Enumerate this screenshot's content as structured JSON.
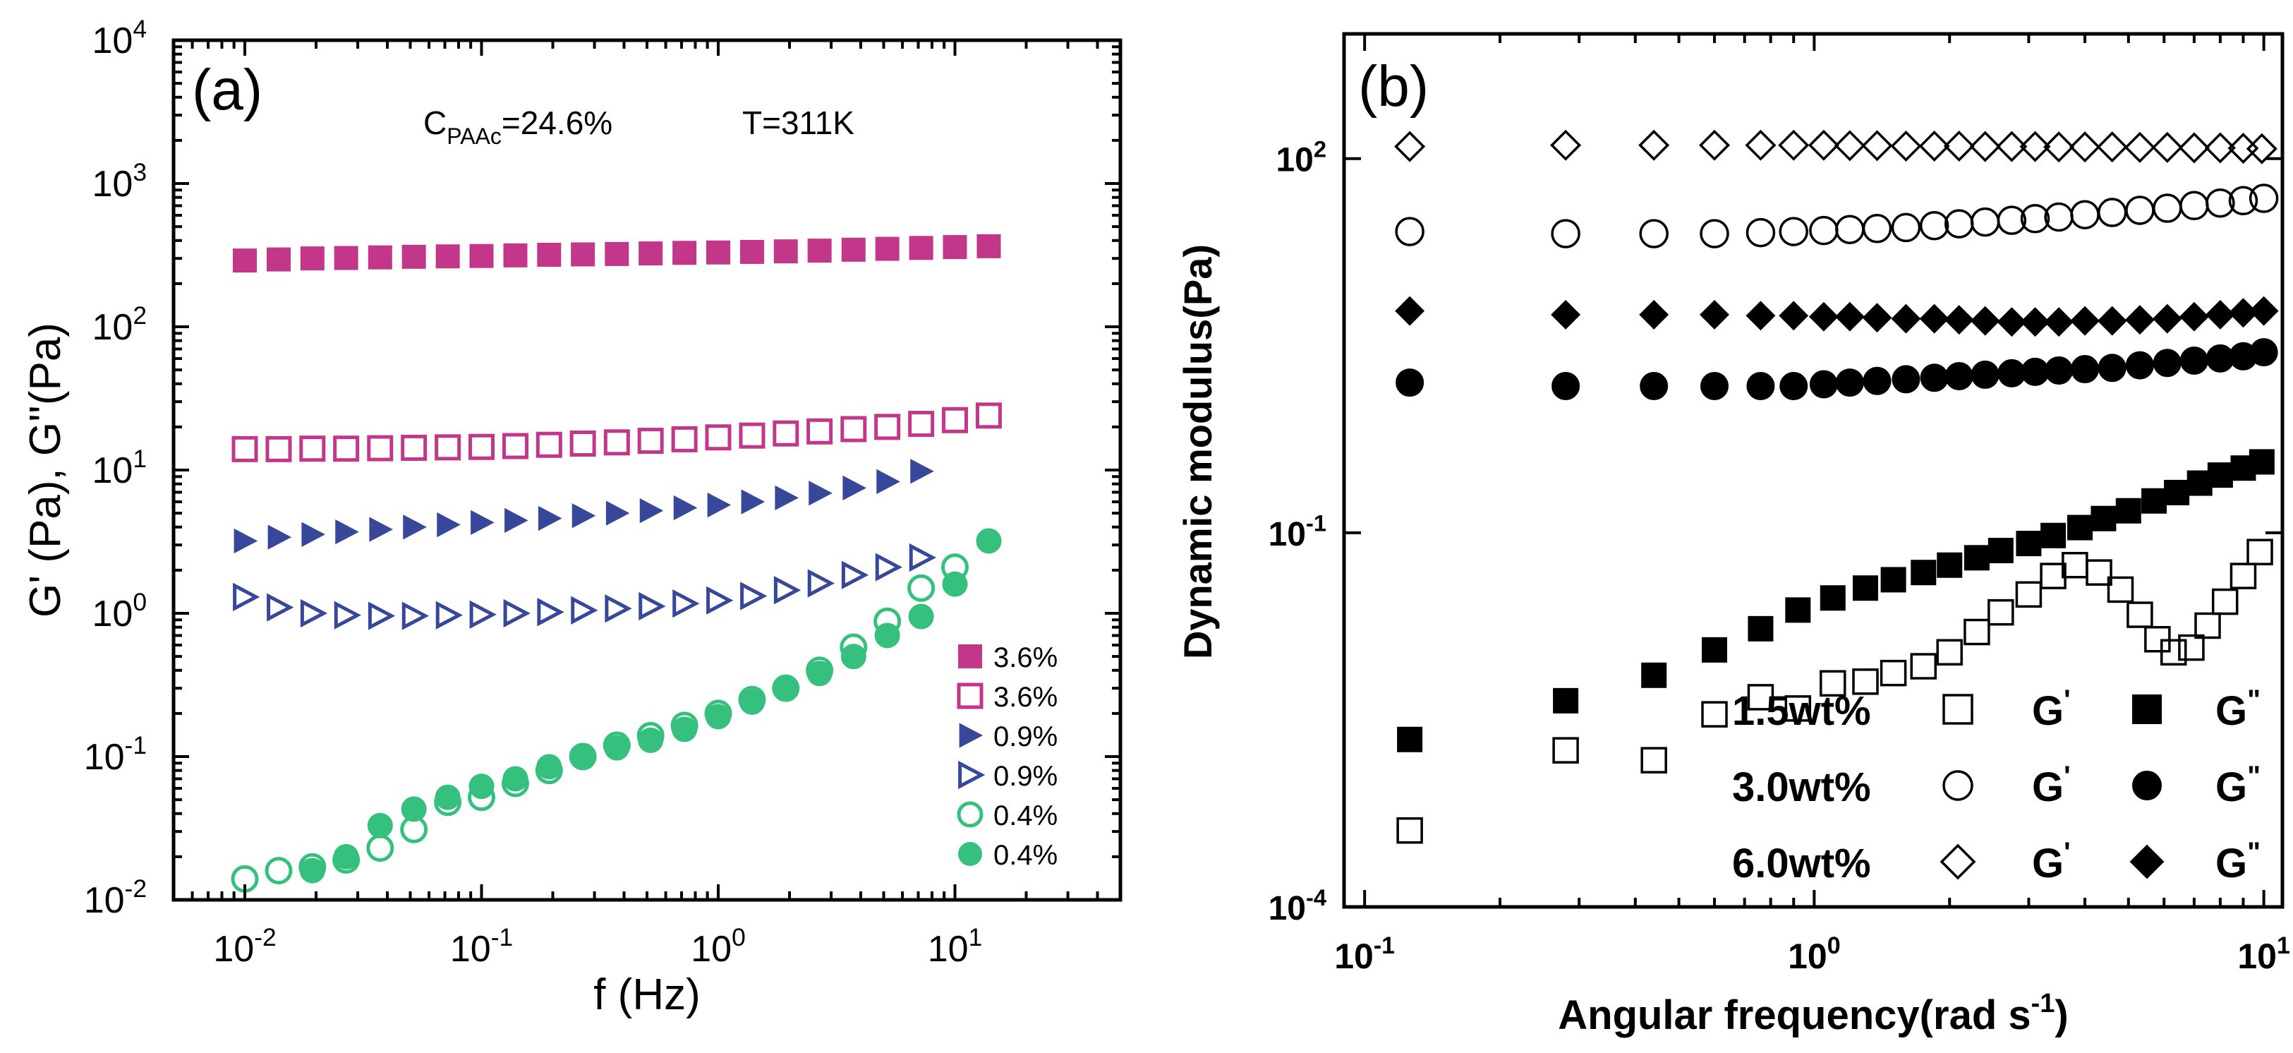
{
  "chart_data": [
    {
      "panel": "(a)",
      "type": "scatter",
      "xscale": "log",
      "yscale": "log",
      "xlim": [
        0.005,
        50
      ],
      "ylim": [
        0.01,
        10000
      ],
      "xlabel": "f (Hz)",
      "ylabel": "G' (Pa), G''(Pa)",
      "annotation": {
        "c_main": "C",
        "c_sub": "PAAc",
        "c_rest": "=24.6%",
        "temp": "T=311K"
      },
      "x_ticks": [
        {
          "value": 0.01,
          "base": "10",
          "exp": "-2"
        },
        {
          "value": 0.1,
          "base": "10",
          "exp": "-1"
        },
        {
          "value": 1,
          "base": "10",
          "exp": "0"
        },
        {
          "value": 10,
          "base": "10",
          "exp": "1"
        }
      ],
      "y_ticks": [
        {
          "value": 0.01,
          "base": "10",
          "exp": "-2"
        },
        {
          "value": 0.1,
          "base": "10",
          "exp": "-1"
        },
        {
          "value": 1,
          "base": "10",
          "exp": "0"
        },
        {
          "value": 10,
          "base": "10",
          "exp": "1"
        },
        {
          "value": 100,
          "base": "10",
          "exp": "2"
        },
        {
          "value": 1000,
          "base": "10",
          "exp": "3"
        },
        {
          "value": 10000,
          "base": "10",
          "exp": "4"
        }
      ],
      "legend_position": "bottom-right",
      "series": [
        {
          "name": "3.6%",
          "marker": "square",
          "filled": true,
          "color": "#c2378a",
          "x": [
            0.01,
            0.0139,
            0.0193,
            0.0268,
            0.0373,
            0.0518,
            0.072,
            0.1,
            0.139,
            0.193,
            0.268,
            0.373,
            0.518,
            0.72,
            1.0,
            1.39,
            1.93,
            2.68,
            3.73,
            5.18,
            7.2,
            10.0,
            13.9
          ],
          "y": [
            290,
            295,
            300,
            302,
            305,
            308,
            310,
            312,
            315,
            318,
            320,
            322,
            325,
            328,
            330,
            333,
            336,
            340,
            345,
            350,
            355,
            360,
            365
          ]
        },
        {
          "name": "3.6%",
          "marker": "square",
          "filled": false,
          "color": "#c2378a",
          "x": [
            0.01,
            0.0139,
            0.0193,
            0.0268,
            0.0373,
            0.0518,
            0.072,
            0.1,
            0.139,
            0.193,
            0.268,
            0.373,
            0.518,
            0.72,
            1.0,
            1.39,
            1.93,
            2.68,
            3.73,
            5.18,
            7.2,
            10.0,
            13.9
          ],
          "y": [
            14,
            14,
            14.1,
            14.1,
            14.2,
            14.3,
            14.4,
            14.5,
            14.7,
            15,
            15.3,
            15.6,
            16,
            16.4,
            16.9,
            17.4,
            18,
            18.6,
            19.3,
            20,
            21,
            22.3,
            24
          ]
        },
        {
          "name": "0.9%",
          "marker": "triangle-right",
          "filled": true,
          "color": "#37489b",
          "x": [
            0.01,
            0.0139,
            0.0193,
            0.0268,
            0.0373,
            0.0518,
            0.072,
            0.1,
            0.139,
            0.193,
            0.268,
            0.373,
            0.518,
            0.72,
            1.0,
            1.39,
            1.93,
            2.68,
            3.73,
            5.18,
            7.2
          ],
          "y": [
            3.2,
            3.4,
            3.55,
            3.7,
            3.85,
            4.0,
            4.15,
            4.3,
            4.45,
            4.6,
            4.8,
            5.0,
            5.2,
            5.45,
            5.7,
            6.0,
            6.4,
            6.9,
            7.5,
            8.3,
            9.8
          ]
        },
        {
          "name": "0.9%",
          "marker": "triangle-right",
          "filled": false,
          "color": "#37489b",
          "x": [
            0.01,
            0.0139,
            0.0193,
            0.0268,
            0.0373,
            0.0518,
            0.072,
            0.1,
            0.139,
            0.193,
            0.268,
            0.373,
            0.518,
            0.72,
            1.0,
            1.39,
            1.93,
            2.68,
            3.73,
            5.18,
            7.2
          ],
          "y": [
            1.3,
            1.1,
            1.0,
            0.97,
            0.96,
            0.96,
            0.97,
            0.98,
            1.0,
            1.02,
            1.05,
            1.08,
            1.12,
            1.17,
            1.23,
            1.32,
            1.45,
            1.62,
            1.85,
            2.1,
            2.45
          ]
        },
        {
          "name": "0.4%",
          "marker": "circle",
          "filled": false,
          "color": "#36c07e",
          "x": [
            0.01,
            0.0139,
            0.0193,
            0.0268,
            0.0373,
            0.0518,
            0.072,
            0.1,
            0.139,
            0.193,
            0.268,
            0.373,
            0.518,
            0.72,
            1.0,
            1.39,
            1.93,
            2.68,
            3.73,
            5.18,
            7.2,
            10.0
          ],
          "y": [
            0.014,
            0.016,
            0.017,
            0.019,
            0.023,
            0.031,
            0.048,
            0.052,
            0.065,
            0.08,
            0.1,
            0.12,
            0.14,
            0.165,
            0.2,
            0.25,
            0.3,
            0.4,
            0.58,
            0.88,
            1.5,
            2.1
          ]
        },
        {
          "name": "0.4%",
          "marker": "circle",
          "filled": true,
          "color": "#36c07e",
          "x": [
            0.0193,
            0.0268,
            0.0373,
            0.0518,
            0.072,
            0.1,
            0.139,
            0.193,
            0.268,
            0.373,
            0.518,
            0.72,
            1.0,
            1.39,
            1.93,
            2.68,
            3.73,
            5.18,
            7.2,
            10.0,
            13.9
          ],
          "y": [
            0.016,
            0.02,
            0.033,
            0.043,
            0.052,
            0.062,
            0.07,
            0.085,
            0.1,
            0.115,
            0.13,
            0.155,
            0.19,
            0.24,
            0.3,
            0.38,
            0.5,
            0.7,
            0.95,
            1.6,
            3.2
          ]
        }
      ]
    },
    {
      "panel": "(b)",
      "type": "scatter",
      "xscale": "log",
      "yscale": "log",
      "xlim": [
        0.09,
        11
      ],
      "ylim": [
        0.0001,
        1000
      ],
      "xlabel_main": "Angular frequency(rad s",
      "xlabel_sup": "-1",
      "xlabel_end": ")",
      "ylabel": "Dynamic modulus(Pa)",
      "x_ticks": [
        {
          "value": 0.1,
          "base": "10",
          "exp": "-1"
        },
        {
          "value": 1,
          "base": "10",
          "exp": "0"
        },
        {
          "value": 10,
          "base": "10",
          "exp": "1"
        }
      ],
      "y_ticks": [
        {
          "value": 0.0001,
          "base": "10",
          "exp": "-4"
        },
        {
          "value": 0.1,
          "base": "10",
          "exp": "-1"
        },
        {
          "value": 100,
          "base": "10",
          "exp": "2"
        }
      ],
      "legend_position": "bottom-right",
      "legend": [
        {
          "label": "1.5wt%",
          "marker": "square",
          "g1": "G",
          "g1_mark": "'",
          "g2": "G",
          "g2_mark": "\""
        },
        {
          "label": "3.0wt%",
          "marker": "circle",
          "g1": "G",
          "g1_mark": "'",
          "g2": "G",
          "g2_mark": "\""
        },
        {
          "label": "6.0wt%",
          "marker": "diamond",
          "g1": "G",
          "g1_mark": "'",
          "g2": "G",
          "g2_mark": "\""
        }
      ],
      "series": [
        {
          "name": "6.0wt% G'",
          "marker": "diamond",
          "filled": false,
          "x": [
            0.126,
            0.28,
            0.44,
            0.6,
            0.76,
            0.9,
            1.05,
            1.2,
            1.38,
            1.6,
            1.85,
            2.1,
            2.4,
            2.75,
            3.1,
            3.5,
            4.0,
            4.6,
            5.3,
            6.1,
            7.0,
            8.0,
            9.0,
            9.9
          ],
          "y": [
            125,
            128,
            128,
            128,
            128,
            128,
            128,
            127,
            127,
            126,
            126,
            126,
            125,
            125,
            125,
            124,
            124,
            124,
            123,
            123,
            122,
            122,
            121,
            120
          ]
        },
        {
          "name": "3.0wt% G'",
          "marker": "circle",
          "filled": false,
          "x": [
            0.126,
            0.28,
            0.44,
            0.6,
            0.76,
            0.9,
            1.05,
            1.2,
            1.38,
            1.6,
            1.85,
            2.1,
            2.4,
            2.75,
            3.1,
            3.5,
            4.0,
            4.6,
            5.3,
            6.1,
            7.0,
            8.0,
            9.0,
            10.0
          ],
          "y": [
            26,
            25,
            25,
            25,
            25.5,
            26,
            26.5,
            27,
            27.5,
            28,
            29,
            30,
            31,
            32,
            33,
            34,
            35.5,
            37,
            38.5,
            40,
            42,
            44,
            46,
            48
          ]
        },
        {
          "name": "6.0wt% G''",
          "marker": "diamond",
          "filled": true,
          "x": [
            0.126,
            0.28,
            0.44,
            0.6,
            0.76,
            0.9,
            1.05,
            1.2,
            1.38,
            1.6,
            1.85,
            2.1,
            2.4,
            2.75,
            3.1,
            3.5,
            4.0,
            4.6,
            5.3,
            6.1,
            7.0,
            8.0,
            9.0,
            10.0
          ],
          "y": [
            6.0,
            5.6,
            5.6,
            5.6,
            5.5,
            5.5,
            5.4,
            5.4,
            5.3,
            5.2,
            5.2,
            5.1,
            5.0,
            4.9,
            4.9,
            4.9,
            5.0,
            5.0,
            5.1,
            5.2,
            5.4,
            5.6,
            5.8,
            6.0
          ]
        },
        {
          "name": "3.0wt% G''",
          "marker": "circle",
          "filled": true,
          "x": [
            0.126,
            0.28,
            0.44,
            0.6,
            0.76,
            0.9,
            1.05,
            1.2,
            1.38,
            1.6,
            1.85,
            2.1,
            2.4,
            2.75,
            3.1,
            3.5,
            4.0,
            4.6,
            5.3,
            6.1,
            7.0,
            8.0,
            9.0,
            10.0
          ],
          "y": [
            1.6,
            1.5,
            1.5,
            1.5,
            1.5,
            1.5,
            1.55,
            1.6,
            1.65,
            1.7,
            1.75,
            1.8,
            1.85,
            1.9,
            1.95,
            2.0,
            2.05,
            2.1,
            2.2,
            2.3,
            2.4,
            2.5,
            2.6,
            2.8
          ]
        },
        {
          "name": "1.5wt% G''",
          "marker": "square",
          "filled": true,
          "x": [
            0.126,
            0.28,
            0.44,
            0.6,
            0.76,
            0.92,
            1.1,
            1.3,
            1.5,
            1.75,
            2.0,
            2.3,
            2.6,
            3.0,
            3.4,
            3.9,
            4.4,
            5.0,
            5.7,
            6.4,
            7.2,
            8.0,
            9.0,
            9.9
          ],
          "y": [
            0.0022,
            0.0045,
            0.0072,
            0.0115,
            0.017,
            0.024,
            0.03,
            0.036,
            0.042,
            0.048,
            0.055,
            0.063,
            0.072,
            0.082,
            0.095,
            0.11,
            0.13,
            0.15,
            0.18,
            0.21,
            0.25,
            0.29,
            0.33,
            0.37
          ]
        },
        {
          "name": "1.5wt% G'",
          "marker": "square",
          "filled": false,
          "x": [
            0.126,
            0.28,
            0.44,
            0.6,
            0.76,
            0.92,
            1.1,
            1.3,
            1.5,
            1.75,
            2.0,
            2.3,
            2.6,
            3.0,
            3.4,
            3.8,
            4.3,
            4.8,
            5.3,
            5.8,
            6.3,
            6.9,
            7.5,
            8.2,
            9.0,
            9.8
          ],
          "y": [
            0.00041,
            0.0018,
            0.0015,
            0.0035,
            0.0048,
            0.0039,
            0.0062,
            0.0064,
            0.0075,
            0.0085,
            0.011,
            0.016,
            0.023,
            0.032,
            0.045,
            0.055,
            0.048,
            0.035,
            0.022,
            0.014,
            0.011,
            0.012,
            0.018,
            0.028,
            0.045,
            0.07
          ]
        }
      ]
    }
  ]
}
